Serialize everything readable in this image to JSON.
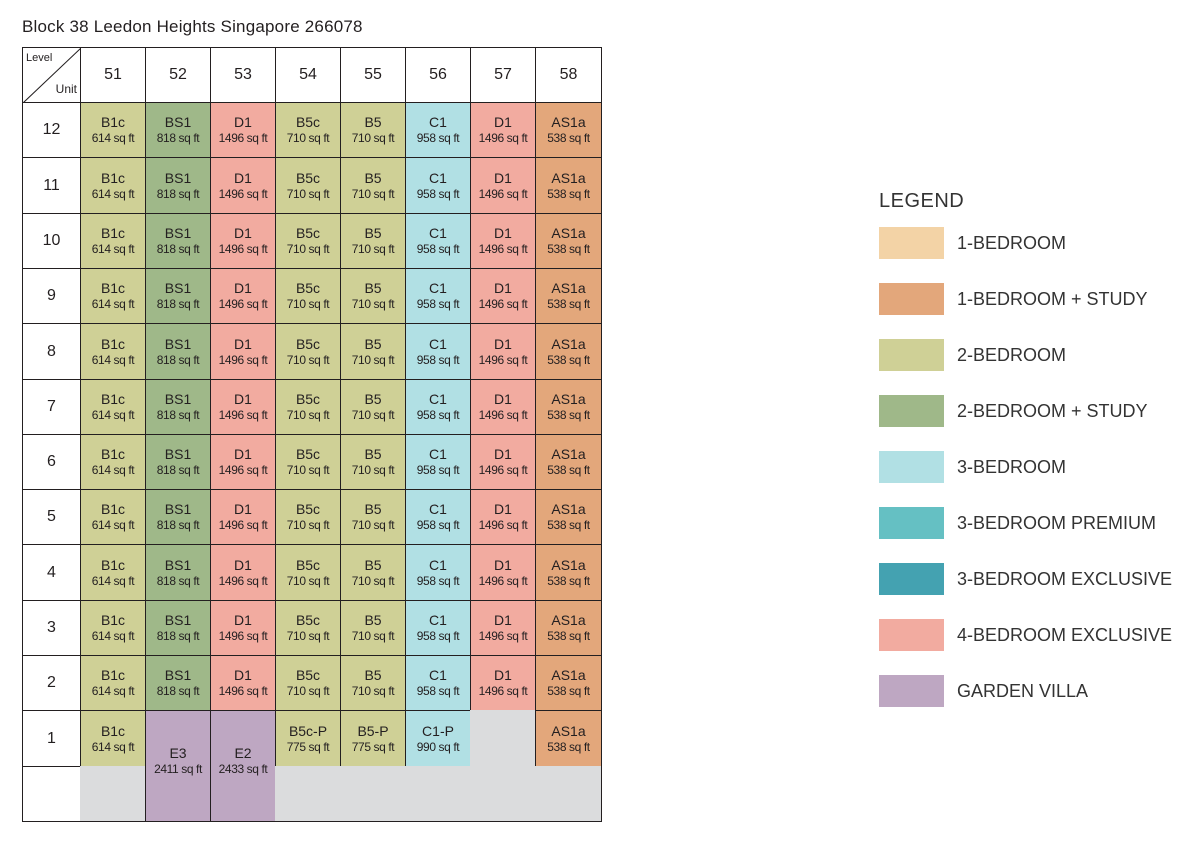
{
  "title": "Block 38 Leedon Heights Singapore 266078",
  "corner": {
    "level_label": "Level",
    "unit_label": "Unit"
  },
  "units": [
    "51",
    "52",
    "53",
    "54",
    "55",
    "56",
    "57",
    "58"
  ],
  "levels": [
    "12",
    "11",
    "10",
    "9",
    "8",
    "7",
    "6",
    "5",
    "4",
    "3",
    "2",
    "1"
  ],
  "unit_types": {
    "B1c": {
      "area": "614 sq ft",
      "category": "2-BEDROOM"
    },
    "BS1": {
      "area": "818 sq ft",
      "category": "2-BEDROOM + STUDY"
    },
    "D1": {
      "area": "1496 sq ft",
      "category": "4-BEDROOM EXCLUSIVE"
    },
    "B5c": {
      "area": "710 sq ft",
      "category": "2-BEDROOM"
    },
    "B5": {
      "area": "710 sq ft",
      "category": "2-BEDROOM"
    },
    "C1": {
      "area": "958 sq ft",
      "category": "3-BEDROOM"
    },
    "AS1a": {
      "area": "538 sq ft",
      "category": "1-BEDROOM + STUDY"
    }
  },
  "typical_floor": [
    "B1c",
    "BS1",
    "D1",
    "B5c",
    "B5",
    "C1",
    "D1",
    "AS1a"
  ],
  "level_1": [
    {
      "unit": "51",
      "code": "B1c",
      "area": "614 sq ft",
      "category": "2-BEDROOM"
    },
    {
      "unit": "52",
      "code": "E3",
      "area": "2411 sq ft",
      "category": "GARDEN VILLA"
    },
    {
      "unit": "53",
      "code": "E2",
      "area": "2433 sq ft",
      "category": "GARDEN VILLA"
    },
    {
      "unit": "54",
      "code": "B5c-P",
      "area": "775 sq ft",
      "category": "2-BEDROOM"
    },
    {
      "unit": "55",
      "code": "B5-P",
      "area": "775 sq ft",
      "category": "2-BEDROOM"
    },
    {
      "unit": "56",
      "code": "C1-P",
      "area": "990 sq ft",
      "category": "3-BEDROOM"
    },
    {
      "unit": "57",
      "code": "",
      "area": "",
      "category": ""
    },
    {
      "unit": "58",
      "code": "AS1a",
      "area": "538 sq ft",
      "category": "1-BEDROOM + STUDY"
    }
  ],
  "legend": {
    "title": "LEGEND",
    "items": [
      {
        "label": "1-BEDROOM",
        "color": "#f3d3a6"
      },
      {
        "label": "1-BEDROOM + STUDY",
        "color": "#e3a77b"
      },
      {
        "label": "2-BEDROOM",
        "color": "#cfd096"
      },
      {
        "label": "2-BEDROOM + STUDY",
        "color": "#9fb889"
      },
      {
        "label": "3-BEDROOM",
        "color": "#b1e0e4"
      },
      {
        "label": "3-BEDROOM PREMIUM",
        "color": "#65c0c3"
      },
      {
        "label": "3-BEDROOM EXCLUSIVE",
        "color": "#44a2b1"
      },
      {
        "label": "4-BEDROOM EXCLUSIVE",
        "color": "#f2aba0"
      },
      {
        "label": "GARDEN VILLA",
        "color": "#bea7c2"
      }
    ]
  },
  "empty_color": "#dbdcdd"
}
